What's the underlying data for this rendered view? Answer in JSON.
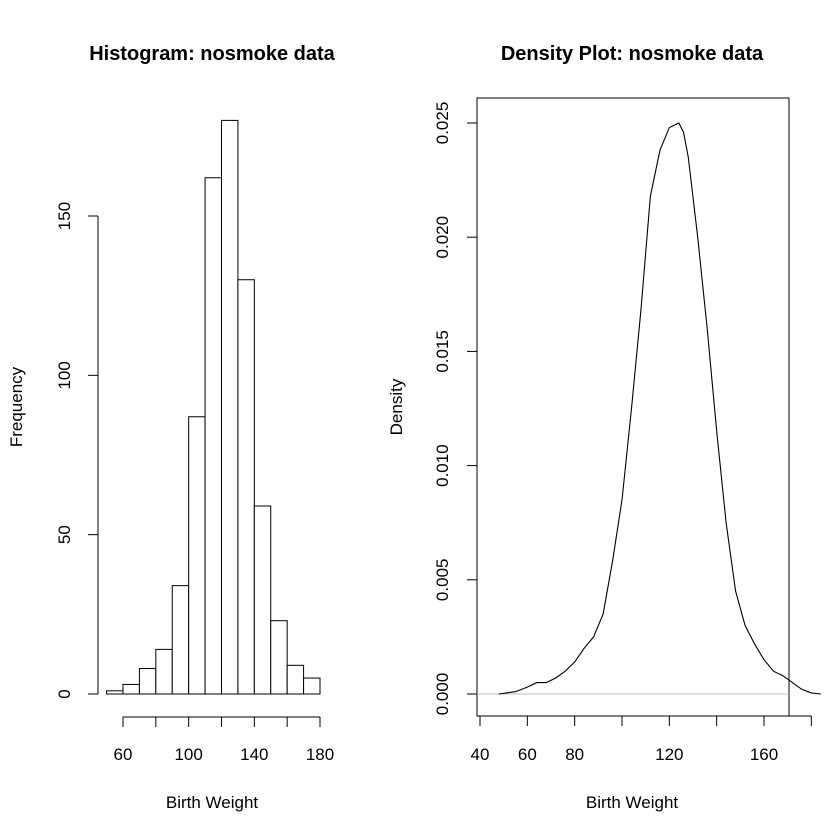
{
  "chart_data": [
    {
      "type": "bar",
      "title": "Histogram: nosmoke data",
      "xlabel": "Birth Weight",
      "ylabel": "Frequency",
      "xlim": [
        40,
        180
      ],
      "ylim": [
        0,
        180
      ],
      "bin_edges": [
        50,
        60,
        70,
        80,
        90,
        100,
        110,
        120,
        130,
        140,
        150,
        160,
        170,
        180
      ],
      "values": [
        1,
        3,
        8,
        14,
        34,
        87,
        162,
        180,
        130,
        59,
        23,
        9,
        5
      ],
      "xticks": [
        60,
        100,
        140,
        180
      ],
      "xtick_minor": [
        60,
        80,
        100,
        120,
        140,
        160,
        180
      ],
      "yticks": [
        0,
        50,
        100,
        150
      ],
      "grid": false
    },
    {
      "type": "line",
      "title": "Density Plot: nosmoke data",
      "xlabel": "Birth Weight",
      "ylabel": "Density",
      "xlim": [
        38,
        190
      ],
      "ylim": [
        -0.001,
        0.026
      ],
      "xticks": [
        40,
        60,
        80,
        120,
        160
      ],
      "xtick_minor": [
        40,
        60,
        80,
        100,
        120,
        140,
        160,
        180
      ],
      "yticks": [
        "0.000",
        "0.005",
        "0.010",
        "0.015",
        "0.020",
        "0.025"
      ],
      "series": [
        {
          "x": [
            48,
            55,
            60,
            64,
            68,
            72,
            76,
            80,
            84,
            88,
            92,
            96,
            100,
            104,
            108,
            112,
            116,
            120,
            124,
            126,
            128,
            132,
            136,
            140,
            144,
            148,
            152,
            156,
            160,
            164,
            168,
            172,
            176,
            180,
            184
          ],
          "y": [
            0.0,
            0.0001,
            0.0003,
            0.0005,
            0.0005,
            0.0007,
            0.001,
            0.0014,
            0.002,
            0.0025,
            0.0035,
            0.0058,
            0.0085,
            0.0125,
            0.0168,
            0.0218,
            0.0238,
            0.0248,
            0.025,
            0.0246,
            0.0235,
            0.02,
            0.016,
            0.0115,
            0.0075,
            0.0045,
            0.003,
            0.0022,
            0.0015,
            0.001,
            0.0008,
            0.0005,
            0.0002,
            5e-05,
            0.0
          ]
        }
      ],
      "zero_line_color": "#bebebe",
      "grid": false
    }
  ]
}
